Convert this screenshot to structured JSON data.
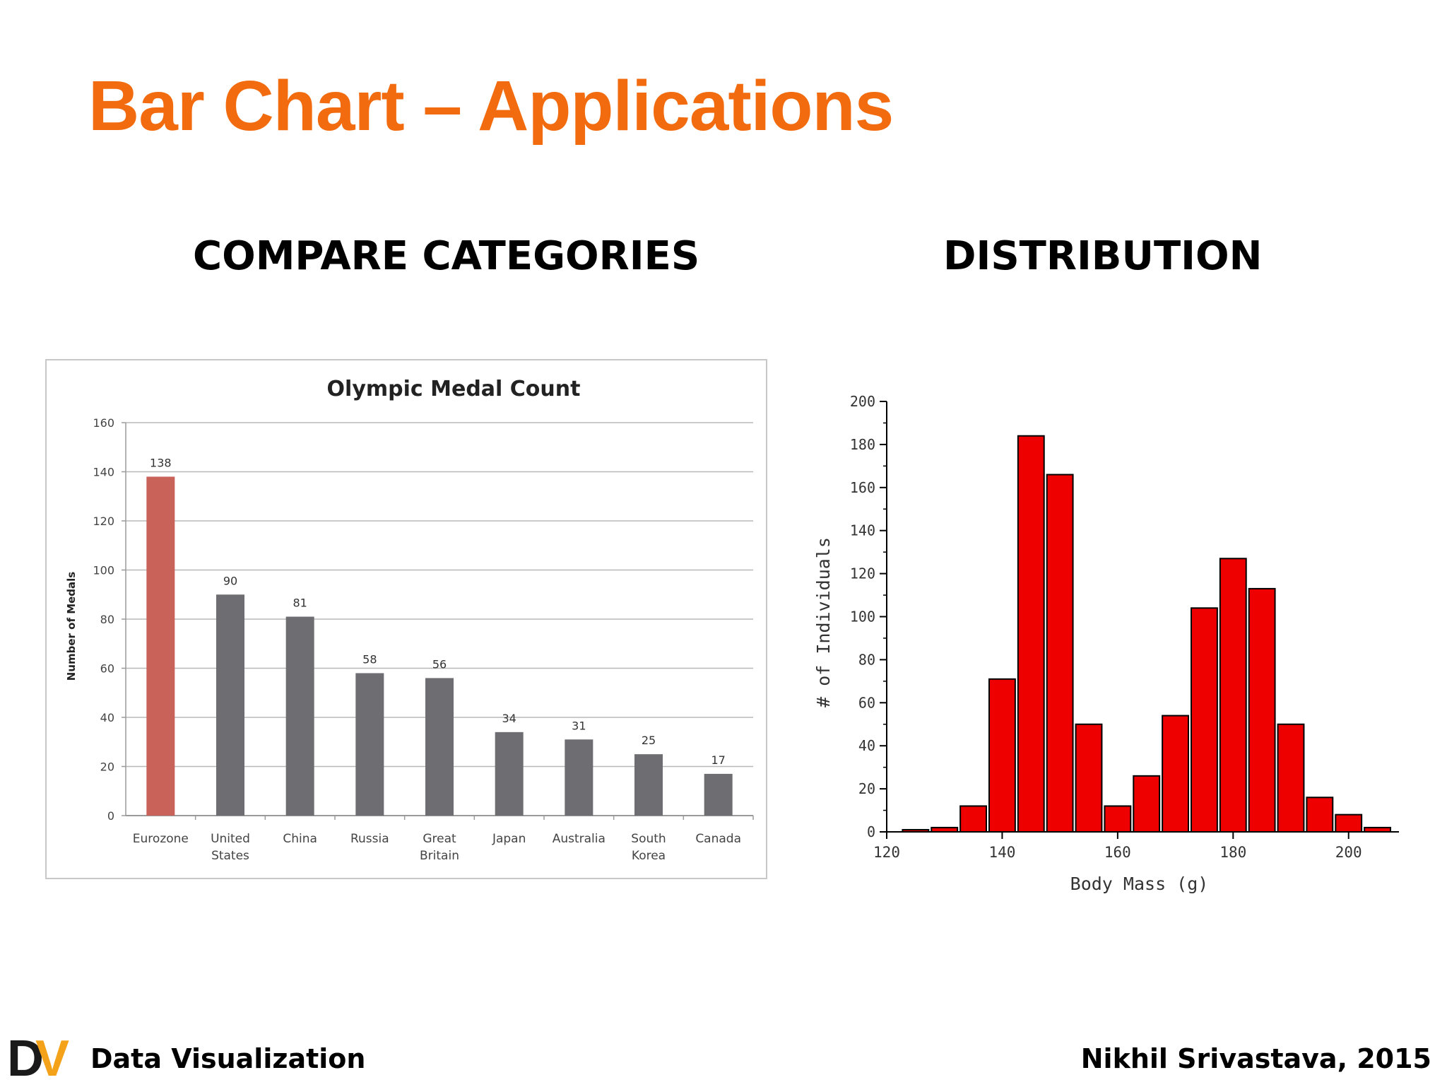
{
  "slide": {
    "title": "Bar Chart – Applications",
    "left_heading": "COMPARE CATEGORIES",
    "right_heading": "DISTRIBUTION",
    "footer_left": "Data Visualization",
    "footer_right": "Nikhil Srivastava, 2015",
    "logo_letters": [
      "D",
      "V"
    ],
    "colors": {
      "title": "#f26b0f",
      "highlight_bar": "#c9635a",
      "gray_bar": "#6e6e72",
      "histogram_bar": "#ee0000",
      "logo_d": "#1a1a1a",
      "logo_v": "#f5a21b"
    }
  },
  "chart_data": [
    {
      "type": "bar",
      "title": "Olympic Medal Count",
      "xlabel": "",
      "ylabel": "Number of Medals",
      "ylim": [
        0,
        160
      ],
      "yticks": [
        0,
        20,
        40,
        60,
        80,
        100,
        120,
        140,
        160
      ],
      "grid": true,
      "categories": [
        [
          "Eurozone"
        ],
        [
          "United",
          "States"
        ],
        [
          "China"
        ],
        [
          "Russia"
        ],
        [
          "Great",
          "Britain"
        ],
        [
          "Japan"
        ],
        [
          "Australia"
        ],
        [
          "South",
          "Korea"
        ],
        [
          "Canada"
        ]
      ],
      "values": [
        138,
        90,
        81,
        58,
        56,
        34,
        31,
        25,
        17
      ],
      "data_labels": [
        "138",
        "90",
        "81",
        "58",
        "56",
        "34",
        "31",
        "25",
        "17"
      ],
      "highlight_index": 0
    },
    {
      "type": "bar",
      "title": "",
      "xlabel": "Body Mass (g)",
      "ylabel": "# of Individuals",
      "xlim": [
        120,
        207.5
      ],
      "ylim": [
        0,
        200
      ],
      "xticks": [
        120,
        140,
        160,
        180,
        200
      ],
      "yticks": [
        0,
        20,
        40,
        60,
        80,
        100,
        120,
        140,
        160,
        180,
        200
      ],
      "grid": false,
      "bin_width": 5,
      "bin_starts": [
        122.5,
        127.5,
        132.5,
        137.5,
        142.5,
        147.5,
        152.5,
        157.5,
        162.5,
        167.5,
        172.5,
        177.5,
        182.5,
        187.5,
        192.5,
        197.5,
        202.5
      ],
      "values": [
        1,
        2,
        12,
        71,
        184,
        166,
        50,
        12,
        26,
        54,
        104,
        127,
        113,
        50,
        16,
        8,
        2
      ]
    }
  ]
}
